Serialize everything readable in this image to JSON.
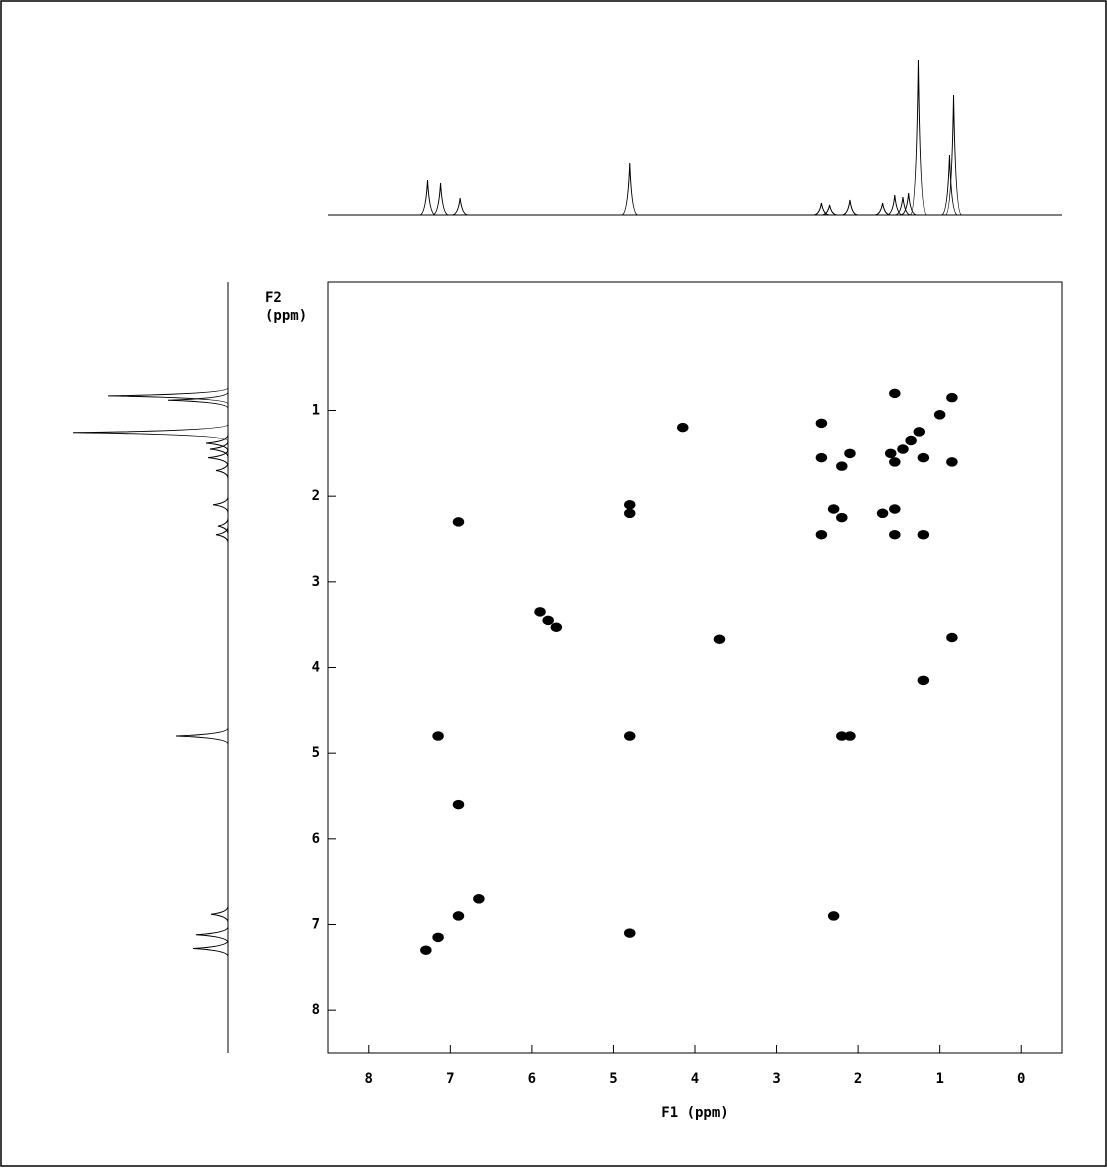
{
  "chart_data": {
    "type": "scatter",
    "x_label": "F1 (ppm)",
    "y_label": [
      "F2",
      "(ppm)"
    ],
    "xlim": [
      8.5,
      -0.5
    ],
    "ylim": [
      -0.5,
      8.5
    ],
    "y_direction": "down",
    "xticks": [
      8,
      7,
      6,
      5,
      4,
      3,
      2,
      1,
      0
    ],
    "yticks": [
      1,
      2,
      3,
      4,
      5,
      6,
      7,
      8
    ],
    "color": "#000000",
    "x": [
      2.45,
      2.45,
      2.1,
      2.2,
      1.6,
      1.45,
      1.35,
      1.25,
      1.55,
      1.2,
      0.85,
      1.0,
      0.85,
      1.55,
      2.3,
      2.2,
      2.45,
      1.7,
      1.55,
      1.55,
      1.2,
      6.9,
      4.8,
      4.8,
      4.15,
      5.9,
      5.8,
      5.7,
      3.7,
      0.85,
      1.2,
      7.15,
      4.8,
      2.2,
      2.1,
      6.9,
      6.65,
      6.9,
      7.15,
      7.3,
      4.8,
      2.3
    ],
    "values": [
      1.15,
      1.55,
      1.5,
      1.65,
      1.5,
      1.45,
      1.35,
      1.25,
      1.6,
      1.55,
      1.6,
      1.05,
      0.85,
      0.8,
      2.15,
      2.25,
      2.45,
      2.2,
      2.15,
      2.45,
      2.45,
      2.3,
      2.1,
      2.2,
      1.2,
      3.35,
      3.45,
      3.53,
      3.67,
      3.65,
      4.15,
      4.8,
      4.8,
      4.8,
      4.8,
      5.6,
      6.7,
      6.9,
      7.15,
      7.3,
      7.1,
      6.9
    ],
    "projection": {
      "x": [
        7.28,
        7.12,
        6.88,
        4.8,
        2.45,
        2.35,
        2.1,
        1.7,
        1.55,
        1.45,
        1.38,
        1.26,
        0.88,
        0.83
      ],
      "values": [
        35,
        32,
        17,
        52,
        12,
        10,
        15,
        12,
        20,
        18,
        22,
        155,
        60,
        120
      ]
    }
  }
}
